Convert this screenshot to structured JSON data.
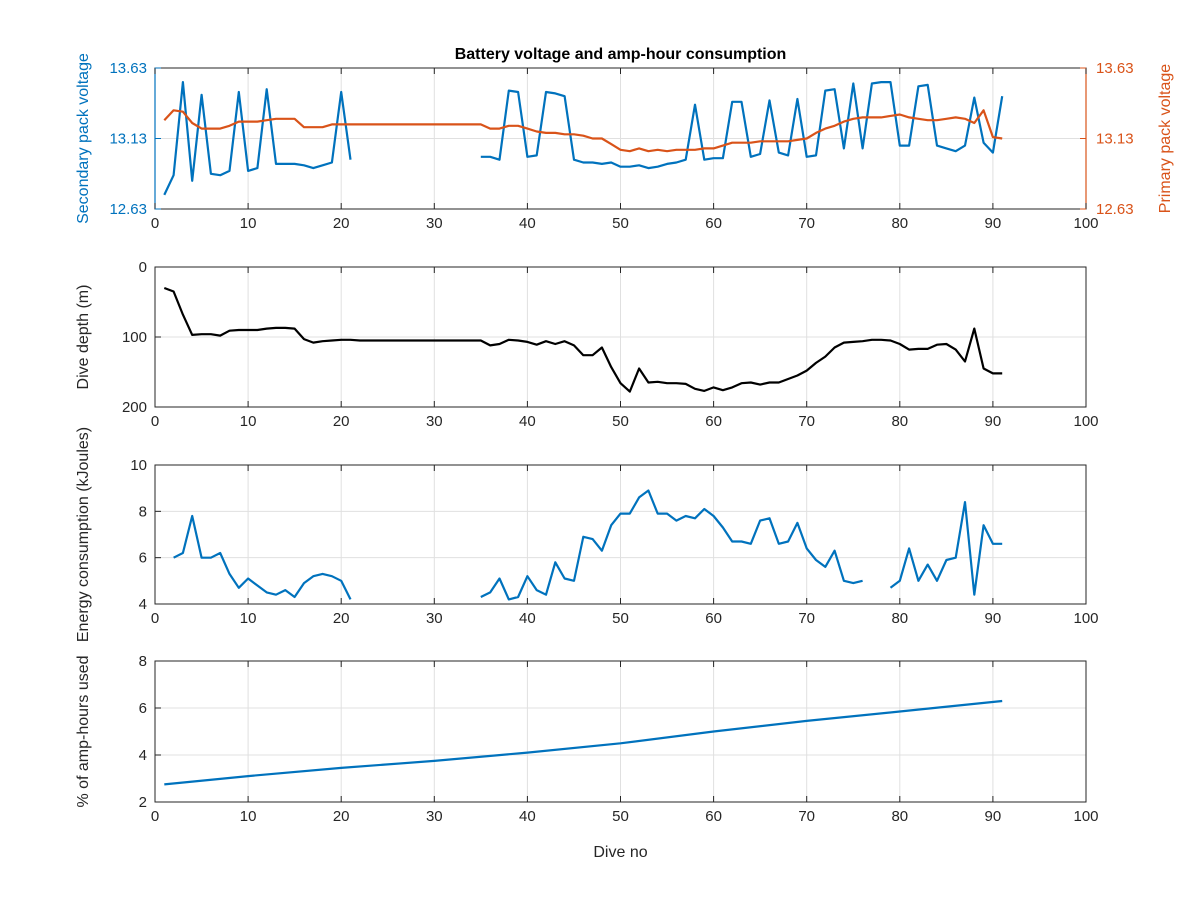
{
  "colors": {
    "secondary": "#0072BD",
    "primary": "#D95319",
    "depth": "#000000",
    "energy": "#0072BD",
    "amphours": "#0072BD",
    "grid": "#e0e0e0",
    "axis": "#262626"
  },
  "chart_data": [
    {
      "type": "line",
      "title": "Battery voltage and amp-hour consumption",
      "xlabel": "",
      "ylabel": "Secondary pack voltage",
      "ylabel_right": "Primary pack voltage",
      "xlim": [
        0,
        100
      ],
      "ylim": [
        12.63,
        13.63
      ],
      "ylim_right": [
        12.63,
        13.63
      ],
      "xticks": [
        0,
        10,
        20,
        30,
        40,
        50,
        60,
        70,
        80,
        90,
        100
      ],
      "yticks": [
        12.63,
        13.13,
        13.63
      ],
      "ytick_labels": [
        "12.63",
        "13.13",
        "13.63"
      ],
      "yticks_right": [
        12.63,
        13.13,
        13.63
      ],
      "ytick_labels_right": [
        "12.63",
        "13.13",
        "13.63"
      ],
      "grid": true,
      "series": [
        {
          "axis": "left",
          "x": [
            1,
            2,
            3,
            4,
            5,
            6,
            7,
            8,
            9,
            10,
            11,
            12,
            13,
            14,
            15,
            16,
            17,
            18,
            19,
            20,
            21,
            null,
            35,
            36,
            37,
            38,
            39,
            40,
            41,
            42,
            43,
            44,
            45,
            46,
            47,
            48,
            49,
            50,
            51,
            52,
            53,
            54,
            55,
            56,
            57,
            58,
            59,
            60,
            61,
            62,
            63,
            64,
            65,
            66,
            67,
            68,
            69,
            70,
            71,
            72,
            73,
            74,
            75,
            76,
            77,
            78,
            79,
            80,
            81,
            82,
            83,
            84,
            85,
            86,
            87,
            88,
            89,
            90,
            91
          ],
          "values": [
            12.73,
            12.87,
            13.53,
            12.83,
            13.44,
            12.88,
            12.87,
            12.9,
            13.46,
            12.9,
            12.92,
            13.48,
            12.95,
            12.95,
            12.95,
            12.94,
            12.92,
            12.94,
            12.96,
            13.46,
            12.98,
            null,
            13.0,
            13.0,
            12.98,
            13.47,
            13.46,
            13.0,
            13.01,
            13.46,
            13.45,
            13.43,
            12.98,
            12.96,
            12.96,
            12.95,
            12.96,
            12.93,
            12.93,
            12.94,
            12.92,
            12.93,
            12.95,
            12.96,
            12.98,
            13.37,
            12.98,
            12.99,
            12.99,
            13.39,
            13.39,
            13.0,
            13.02,
            13.4,
            13.03,
            13.01,
            13.41,
            13.0,
            13.01,
            13.47,
            13.48,
            13.06,
            13.52,
            13.06,
            13.52,
            13.53,
            13.53,
            13.08,
            13.08,
            13.5,
            13.51,
            13.08,
            13.06,
            13.04,
            13.08,
            13.42,
            13.1,
            13.03,
            13.43
          ]
        },
        {
          "axis": "right",
          "x": [
            1,
            2,
            3,
            4,
            5,
            6,
            7,
            8,
            9,
            10,
            11,
            12,
            13,
            14,
            15,
            16,
            17,
            18,
            19,
            20,
            21,
            30,
            35,
            36,
            37,
            38,
            39,
            40,
            41,
            42,
            43,
            44,
            45,
            46,
            47,
            48,
            49,
            50,
            51,
            52,
            53,
            54,
            55,
            56,
            57,
            58,
            59,
            60,
            61,
            62,
            63,
            64,
            65,
            66,
            67,
            68,
            69,
            70,
            71,
            72,
            73,
            74,
            75,
            76,
            77,
            78,
            79,
            80,
            81,
            82,
            83,
            84,
            85,
            86,
            87,
            88,
            89,
            90,
            91
          ],
          "values": [
            13.26,
            13.33,
            13.32,
            13.24,
            13.2,
            13.2,
            13.2,
            13.22,
            13.25,
            13.25,
            13.25,
            13.26,
            13.27,
            13.27,
            13.27,
            13.21,
            13.21,
            13.21,
            13.23,
            13.23,
            13.23,
            13.23,
            13.23,
            13.2,
            13.2,
            13.22,
            13.22,
            13.2,
            13.18,
            13.17,
            13.17,
            13.16,
            13.16,
            13.15,
            13.13,
            13.13,
            13.09,
            13.05,
            13.04,
            13.06,
            13.04,
            13.05,
            13.04,
            13.05,
            13.05,
            13.05,
            13.06,
            13.06,
            13.08,
            13.1,
            13.1,
            13.1,
            13.11,
            13.11,
            13.11,
            13.11,
            13.12,
            13.13,
            13.17,
            13.2,
            13.22,
            13.25,
            13.27,
            13.28,
            13.28,
            13.28,
            13.29,
            13.3,
            13.28,
            13.27,
            13.26,
            13.26,
            13.27,
            13.28,
            13.27,
            13.24,
            13.33,
            13.14,
            13.13
          ]
        }
      ]
    },
    {
      "type": "line",
      "title": "",
      "xlabel": "",
      "ylabel": "Dive depth (m)",
      "xlim": [
        0,
        100
      ],
      "ylim": [
        0,
        200
      ],
      "y_reversed": true,
      "xticks": [
        0,
        10,
        20,
        30,
        40,
        50,
        60,
        70,
        80,
        90,
        100
      ],
      "yticks": [
        0,
        100,
        200
      ],
      "ytick_labels": [
        "0",
        "100",
        "200"
      ],
      "grid": true,
      "series": [
        {
          "x": [
            1,
            2,
            3,
            4,
            5,
            6,
            7,
            8,
            9,
            10,
            11,
            12,
            13,
            14,
            15,
            16,
            17,
            18,
            19,
            20,
            21,
            22,
            25,
            30,
            35,
            36,
            37,
            38,
            39,
            40,
            41,
            42,
            43,
            44,
            45,
            46,
            47,
            48,
            49,
            50,
            51,
            52,
            53,
            54,
            55,
            56,
            57,
            58,
            59,
            60,
            61,
            62,
            63,
            64,
            65,
            66,
            67,
            68,
            69,
            70,
            71,
            72,
            73,
            74,
            75,
            76,
            77,
            78,
            79,
            80,
            81,
            82,
            83,
            84,
            85,
            86,
            87,
            88,
            89,
            90,
            91
          ],
          "values": [
            30,
            35,
            68,
            97,
            96,
            96,
            98,
            91,
            90,
            90,
            90,
            88,
            87,
            87,
            88,
            103,
            108,
            106,
            105,
            104,
            104,
            105,
            105,
            105,
            105,
            112,
            110,
            104,
            105,
            107,
            111,
            106,
            110,
            106,
            112,
            126,
            126,
            115,
            143,
            166,
            178,
            145,
            165,
            164,
            166,
            166,
            167,
            174,
            177,
            172,
            176,
            172,
            166,
            165,
            168,
            165,
            165,
            160,
            155,
            148,
            137,
            128,
            115,
            108,
            107,
            106,
            104,
            104,
            105,
            110,
            118,
            117,
            117,
            111,
            110,
            118,
            135,
            88,
            145,
            152,
            152
          ]
        }
      ]
    },
    {
      "type": "line",
      "title": "",
      "xlabel": "",
      "ylabel": "Energy consumption (kJoules)",
      "xlim": [
        0,
        100
      ],
      "ylim": [
        4,
        10
      ],
      "xticks": [
        0,
        10,
        20,
        30,
        40,
        50,
        60,
        70,
        80,
        90,
        100
      ],
      "yticks": [
        4,
        6,
        8,
        10
      ],
      "ytick_labels": [
        "4",
        "6",
        "8",
        "10"
      ],
      "grid": true,
      "series": [
        {
          "x": [
            2,
            3,
            4,
            5,
            6,
            7,
            8,
            9,
            10,
            11,
            12,
            13,
            14,
            15,
            16,
            17,
            18,
            19,
            20,
            21,
            null,
            35,
            36,
            37,
            38,
            39,
            40,
            41,
            42,
            43,
            44,
            45,
            46,
            47,
            48,
            49,
            50,
            51,
            52,
            53,
            54,
            55,
            56,
            57,
            58,
            59,
            60,
            61,
            62,
            63,
            64,
            65,
            66,
            67,
            68,
            69,
            70,
            71,
            72,
            73,
            74,
            75,
            76,
            null,
            79,
            80,
            81,
            82,
            83,
            84,
            85,
            86,
            87,
            88,
            89,
            90,
            91
          ],
          "values": [
            6.0,
            6.2,
            7.8,
            6.0,
            6.0,
            6.2,
            5.3,
            4.7,
            5.1,
            4.8,
            4.5,
            4.4,
            4.6,
            4.3,
            4.9,
            5.2,
            5.3,
            5.2,
            5.0,
            4.2,
            null,
            4.3,
            4.5,
            5.1,
            4.2,
            4.3,
            5.2,
            4.6,
            4.4,
            5.8,
            5.1,
            5.0,
            6.9,
            6.8,
            6.3,
            7.4,
            7.9,
            7.9,
            8.6,
            8.9,
            7.9,
            7.9,
            7.6,
            7.8,
            7.7,
            8.1,
            7.8,
            7.3,
            6.7,
            6.7,
            6.6,
            7.6,
            7.7,
            6.6,
            6.7,
            7.5,
            6.4,
            5.9,
            5.6,
            6.3,
            5.0,
            4.9,
            5.0,
            null,
            4.7,
            5.0,
            6.4,
            5.0,
            5.7,
            5.0,
            5.9,
            6.0,
            8.4,
            4.4,
            7.4,
            6.6,
            6.6
          ]
        }
      ]
    },
    {
      "type": "line",
      "title": "",
      "xlabel": "Dive no",
      "ylabel": "% of amp-hours used",
      "xlim": [
        0,
        100
      ],
      "ylim": [
        2,
        8
      ],
      "xticks": [
        0,
        10,
        20,
        30,
        40,
        50,
        60,
        70,
        80,
        90,
        100
      ],
      "yticks": [
        2,
        4,
        6,
        8
      ],
      "ytick_labels": [
        "2",
        "4",
        "6",
        "8"
      ],
      "grid": true,
      "series": [
        {
          "x": [
            1,
            10,
            20,
            30,
            40,
            50,
            60,
            70,
            80,
            91
          ],
          "values": [
            2.75,
            3.1,
            3.45,
            3.75,
            4.1,
            4.5,
            5.0,
            5.45,
            5.85,
            6.3
          ]
        }
      ]
    }
  ]
}
